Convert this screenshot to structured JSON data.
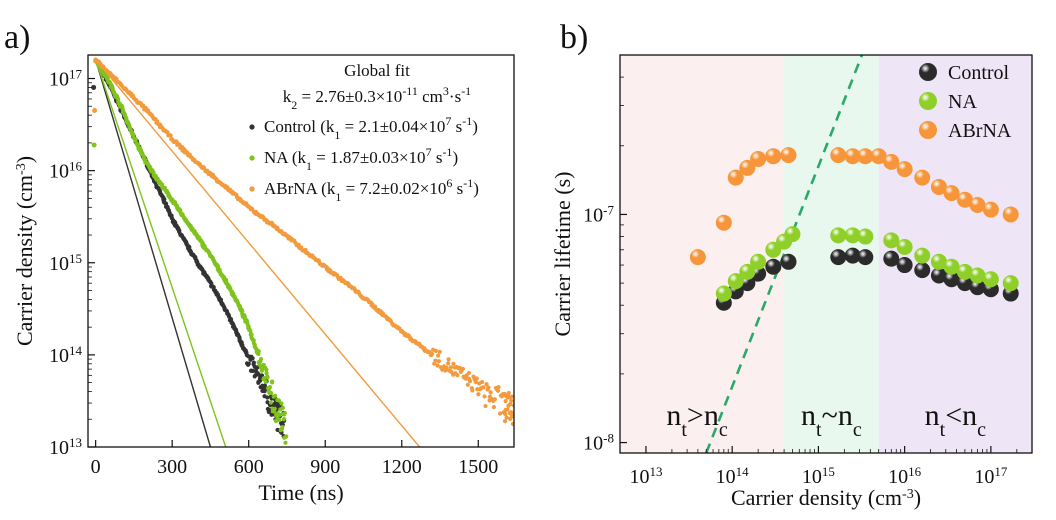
{
  "chart_data": [
    {
      "panel_label": "a)",
      "type": "scatter",
      "xlabel": "Time (ns)",
      "ylabel": "Carrier density (cm",
      "ylabel_sup": "-3",
      "ylabel_end": ")",
      "xlim": [
        -30,
        1640
      ],
      "ylim": [
        10000000000000.0,
        1.8e+17
      ],
      "yscale": "log",
      "xticks": [
        0,
        300,
        600,
        900,
        1200,
        1500
      ],
      "yticks": [
        {
          "base": "10",
          "exp": "13",
          "value": 10000000000000.0
        },
        {
          "base": "10",
          "exp": "14",
          "value": 100000000000000.0
        },
        {
          "base": "10",
          "exp": "15",
          "value": 1000000000000000.0
        },
        {
          "base": "10",
          "exp": "16",
          "value": 1e+16
        },
        {
          "base": "10",
          "exp": "17",
          "value": 1e+17
        }
      ],
      "annotation_title": "Global fit",
      "annotation_fit": {
        "prefix": "k",
        "sub": "2",
        "text": " = 2.76±0.3×10",
        "sup": "-11",
        "unit": " cm",
        "unit_sup": "3",
        "unit_mid": "·s",
        "unit_sup2": "-1"
      },
      "legend_placement": "top-right",
      "series": [
        {
          "name": "Control",
          "k1_label": {
            "pre": " (k",
            "sub": "1",
            "mid": " = 2.1±0.04×10",
            "sup": "7",
            "unit": " s",
            "unit_sup": "-1",
            "end": ")"
          },
          "color": "#333333",
          "n0": 1.6e+17,
          "points": [
            [
              0,
              1.6e+17
            ],
            [
              50,
              9e+16
            ],
            [
              100,
              4.6e+16
            ],
            [
              150,
              2.3e+16
            ],
            [
              200,
              1.2e+16
            ],
            [
              250,
              6000000000000000.0
            ],
            [
              300,
              3000000000000000.0
            ],
            [
              350,
              1700000000000000.0
            ],
            [
              400,
              1000000000000000.0
            ],
            [
              450,
              600000000000000.0
            ],
            [
              500,
              350000000000000.0
            ],
            [
              550,
              180000000000000.0
            ],
            [
              600,
              90000000000000.0
            ],
            [
              650,
              50000000000000.0
            ],
            [
              700,
              25000000000000.0
            ],
            [
              740,
              18000000000000.0
            ]
          ],
          "fit": [
            [
              0,
              1.6e+17
            ],
            [
              450,
              10000000000000.0
            ]
          ]
        },
        {
          "name": "NA",
          "k1_label": {
            "pre": " (k",
            "sub": "1",
            "mid": " = 1.87±0.03×10",
            "sup": "7",
            "unit": " s",
            "unit_sup": "-1",
            "end": ")"
          },
          "color": "#7fc31c",
          "n0": 1.6e+17,
          "points": [
            [
              0,
              1.6e+17
            ],
            [
              50,
              9.5e+16
            ],
            [
              100,
              5e+16
            ],
            [
              150,
              2.3e+16
            ],
            [
              200,
              1.2e+16
            ],
            [
              250,
              7500000000000000.0
            ],
            [
              300,
              4800000000000000.0
            ],
            [
              350,
              3000000000000000.0
            ],
            [
              400,
              1900000000000000.0
            ],
            [
              450,
              1200000000000000.0
            ],
            [
              500,
              700000000000000.0
            ],
            [
              550,
              400000000000000.0
            ],
            [
              600,
              200000000000000.0
            ],
            [
              650,
              80000000000000.0
            ],
            [
              700,
              30000000000000.0
            ],
            [
              750,
              15000000000000.0
            ]
          ],
          "fit": [
            [
              0,
              1.6e+17
            ],
            [
              510,
              10000000000000.0
            ]
          ]
        },
        {
          "name": "ABrNA",
          "k1_label": {
            "pre": " (k",
            "sub": "1",
            "mid": " = 7.2±0.02×10",
            "sup": "6",
            "unit": " s",
            "unit_sup": "-1",
            "end": ")"
          },
          "color": "#f39a3c",
          "n0": 1.6e+17,
          "points": [
            [
              0,
              1.6e+17
            ],
            [
              100,
              8.5e+16
            ],
            [
              200,
              4.5e+16
            ],
            [
              300,
              2.2e+16
            ],
            [
              400,
              1.2e+16
            ],
            [
              500,
              7000000000000000.0
            ],
            [
              600,
              4000000000000000.0
            ],
            [
              700,
              2500000000000000.0
            ],
            [
              800,
              1500000000000000.0
            ],
            [
              900,
              900000000000000.0
            ],
            [
              1000,
              550000000000000.0
            ],
            [
              1100,
              320000000000000.0
            ],
            [
              1200,
              180000000000000.0
            ],
            [
              1300,
              110000000000000.0
            ],
            [
              1400,
              70000000000000.0
            ],
            [
              1500,
              45000000000000.0
            ],
            [
              1600,
              28000000000000.0
            ],
            [
              1640,
              25000000000000.0
            ]
          ],
          "fit": [
            [
              0,
              1.6e+17
            ],
            [
              1270,
              10000000000000.0
            ]
          ]
        }
      ],
      "initial_points": [
        {
          "t": -8,
          "n": 8e+16,
          "color": "#333333"
        },
        {
          "t": -6,
          "n": 1.9e+16,
          "color": "#7fc31c"
        },
        {
          "t": -4,
          "n": 4.5e+16,
          "color": "#f39a3c"
        }
      ]
    },
    {
      "panel_label": "b)",
      "type": "scatter",
      "xlabel": "Carrier density (cm",
      "xlabel_sup": "-3",
      "xlabel_end": ")",
      "ylabel": "Carrier lifetime (s)",
      "xscale": "log",
      "yscale": "log",
      "xlim": [
        5000000000000.0,
        3e+17
      ],
      "ylim": [
        9e-09,
        5e-07
      ],
      "xticks": [
        {
          "base": "10",
          "exp": "13",
          "value": 10000000000000.0
        },
        {
          "base": "10",
          "exp": "14",
          "value": 100000000000000.0
        },
        {
          "base": "10",
          "exp": "15",
          "value": 1000000000000000.0
        },
        {
          "base": "10",
          "exp": "16",
          "value": 1e+16
        },
        {
          "base": "10",
          "exp": "17",
          "value": 1e+17
        }
      ],
      "yticks": [
        {
          "base": "10",
          "exp": "-8",
          "value": 1e-08
        },
        {
          "base": "10",
          "exp": "-7",
          "value": 1e-07
        }
      ],
      "regions": [
        {
          "from": 5000000000000.0,
          "to": 400000000000000.0,
          "color": "#fbeff0",
          "label": {
            "a": "n",
            "asub": "t",
            "op": ">",
            "b": "n",
            "bsub": "c"
          }
        },
        {
          "from": 400000000000000.0,
          "to": 5000000000000000.0,
          "color": "#e8f8ee",
          "label": {
            "a": "n",
            "asub": "t",
            "op": "~",
            "b": "n",
            "bsub": "c"
          }
        },
        {
          "from": 5000000000000000.0,
          "to": 3e+17,
          "color": "#eee6f7",
          "label": {
            "a": "n",
            "asub": "t",
            "op": "<",
            "b": "n",
            "bsub": "c"
          }
        }
      ],
      "dashed_line": {
        "color": "#2aa96a",
        "points": [
          [
            50000000000000.0,
            9e-09
          ],
          [
            3200000000000000.0,
            5e-07
          ]
        ]
      },
      "legend_placement": "top-right",
      "series": [
        {
          "name": "Control",
          "color": "#2b2b2b",
          "points": [
            [
              80000000000000.0,
              4.1e-08
            ],
            [
              110000000000000.0,
              4.6e-08
            ],
            [
              150000000000000.0,
              5e-08
            ],
            [
              200000000000000.0,
              5.5e-08
            ],
            [
              300000000000000.0,
              5.9e-08
            ],
            [
              450000000000000.0,
              6.2e-08
            ],
            [
              1700000000000000.0,
              6.5e-08
            ],
            [
              2500000000000000.0,
              6.6e-08
            ],
            [
              3500000000000000.0,
              6.5e-08
            ],
            [
              7000000000000000.0,
              6.4e-08
            ],
            [
              1e+16,
              6e-08
            ],
            [
              1.6e+16,
              5.7e-08
            ],
            [
              2.5e+16,
              5.4e-08
            ],
            [
              3.5e+16,
              5.2e-08
            ],
            [
              5e+16,
              5e-08
            ],
            [
              7e+16,
              4.8e-08
            ],
            [
              1e+17,
              4.7e-08
            ],
            [
              1.7e+17,
              4.5e-08
            ]
          ]
        },
        {
          "name": "NA",
          "color": "#8fcf2a",
          "points": [
            [
              80000000000000.0,
              4.5e-08
            ],
            [
              110000000000000.0,
              5.1e-08
            ],
            [
              150000000000000.0,
              5.6e-08
            ],
            [
              200000000000000.0,
              6.2e-08
            ],
            [
              300000000000000.0,
              7e-08
            ],
            [
              400000000000000.0,
              7.6e-08
            ],
            [
              500000000000000.0,
              8.2e-08
            ],
            [
              1700000000000000.0,
              8.1e-08
            ],
            [
              2500000000000000.0,
              8.1e-08
            ],
            [
              3500000000000000.0,
              8e-08
            ],
            [
              7000000000000000.0,
              7.7e-08
            ],
            [
              1e+16,
              7.2e-08
            ],
            [
              1.6e+16,
              6.6e-08
            ],
            [
              2.5e+16,
              6.2e-08
            ],
            [
              3.5e+16,
              5.9e-08
            ],
            [
              5e+16,
              5.6e-08
            ],
            [
              7e+16,
              5.4e-08
            ],
            [
              1e+17,
              5.2e-08
            ],
            [
              1.7e+17,
              5e-08
            ]
          ]
        },
        {
          "name": "ABrNA",
          "color": "#f7953a",
          "points": [
            [
              40000000000000.0,
              6.5e-08
            ],
            [
              80000000000000.0,
              9.2e-08
            ],
            [
              110000000000000.0,
              1.45e-07
            ],
            [
              150000000000000.0,
              1.6e-07
            ],
            [
              200000000000000.0,
              1.75e-07
            ],
            [
              300000000000000.0,
              1.8e-07
            ],
            [
              450000000000000.0,
              1.82e-07
            ],
            [
              1700000000000000.0,
              1.82e-07
            ],
            [
              2500000000000000.0,
              1.8e-07
            ],
            [
              3500000000000000.0,
              1.8e-07
            ],
            [
              5000000000000000.0,
              1.8e-07
            ],
            [
              7000000000000000.0,
              1.7e-07
            ],
            [
              1e+16,
              1.58e-07
            ],
            [
              1.6e+16,
              1.45e-07
            ],
            [
              2.5e+16,
              1.32e-07
            ],
            [
              3.5e+16,
              1.24e-07
            ],
            [
              5e+16,
              1.16e-07
            ],
            [
              7e+16,
              1.1e-07
            ],
            [
              1e+17,
              1.05e-07
            ],
            [
              1.7e+17,
              1e-07
            ]
          ]
        }
      ]
    }
  ]
}
